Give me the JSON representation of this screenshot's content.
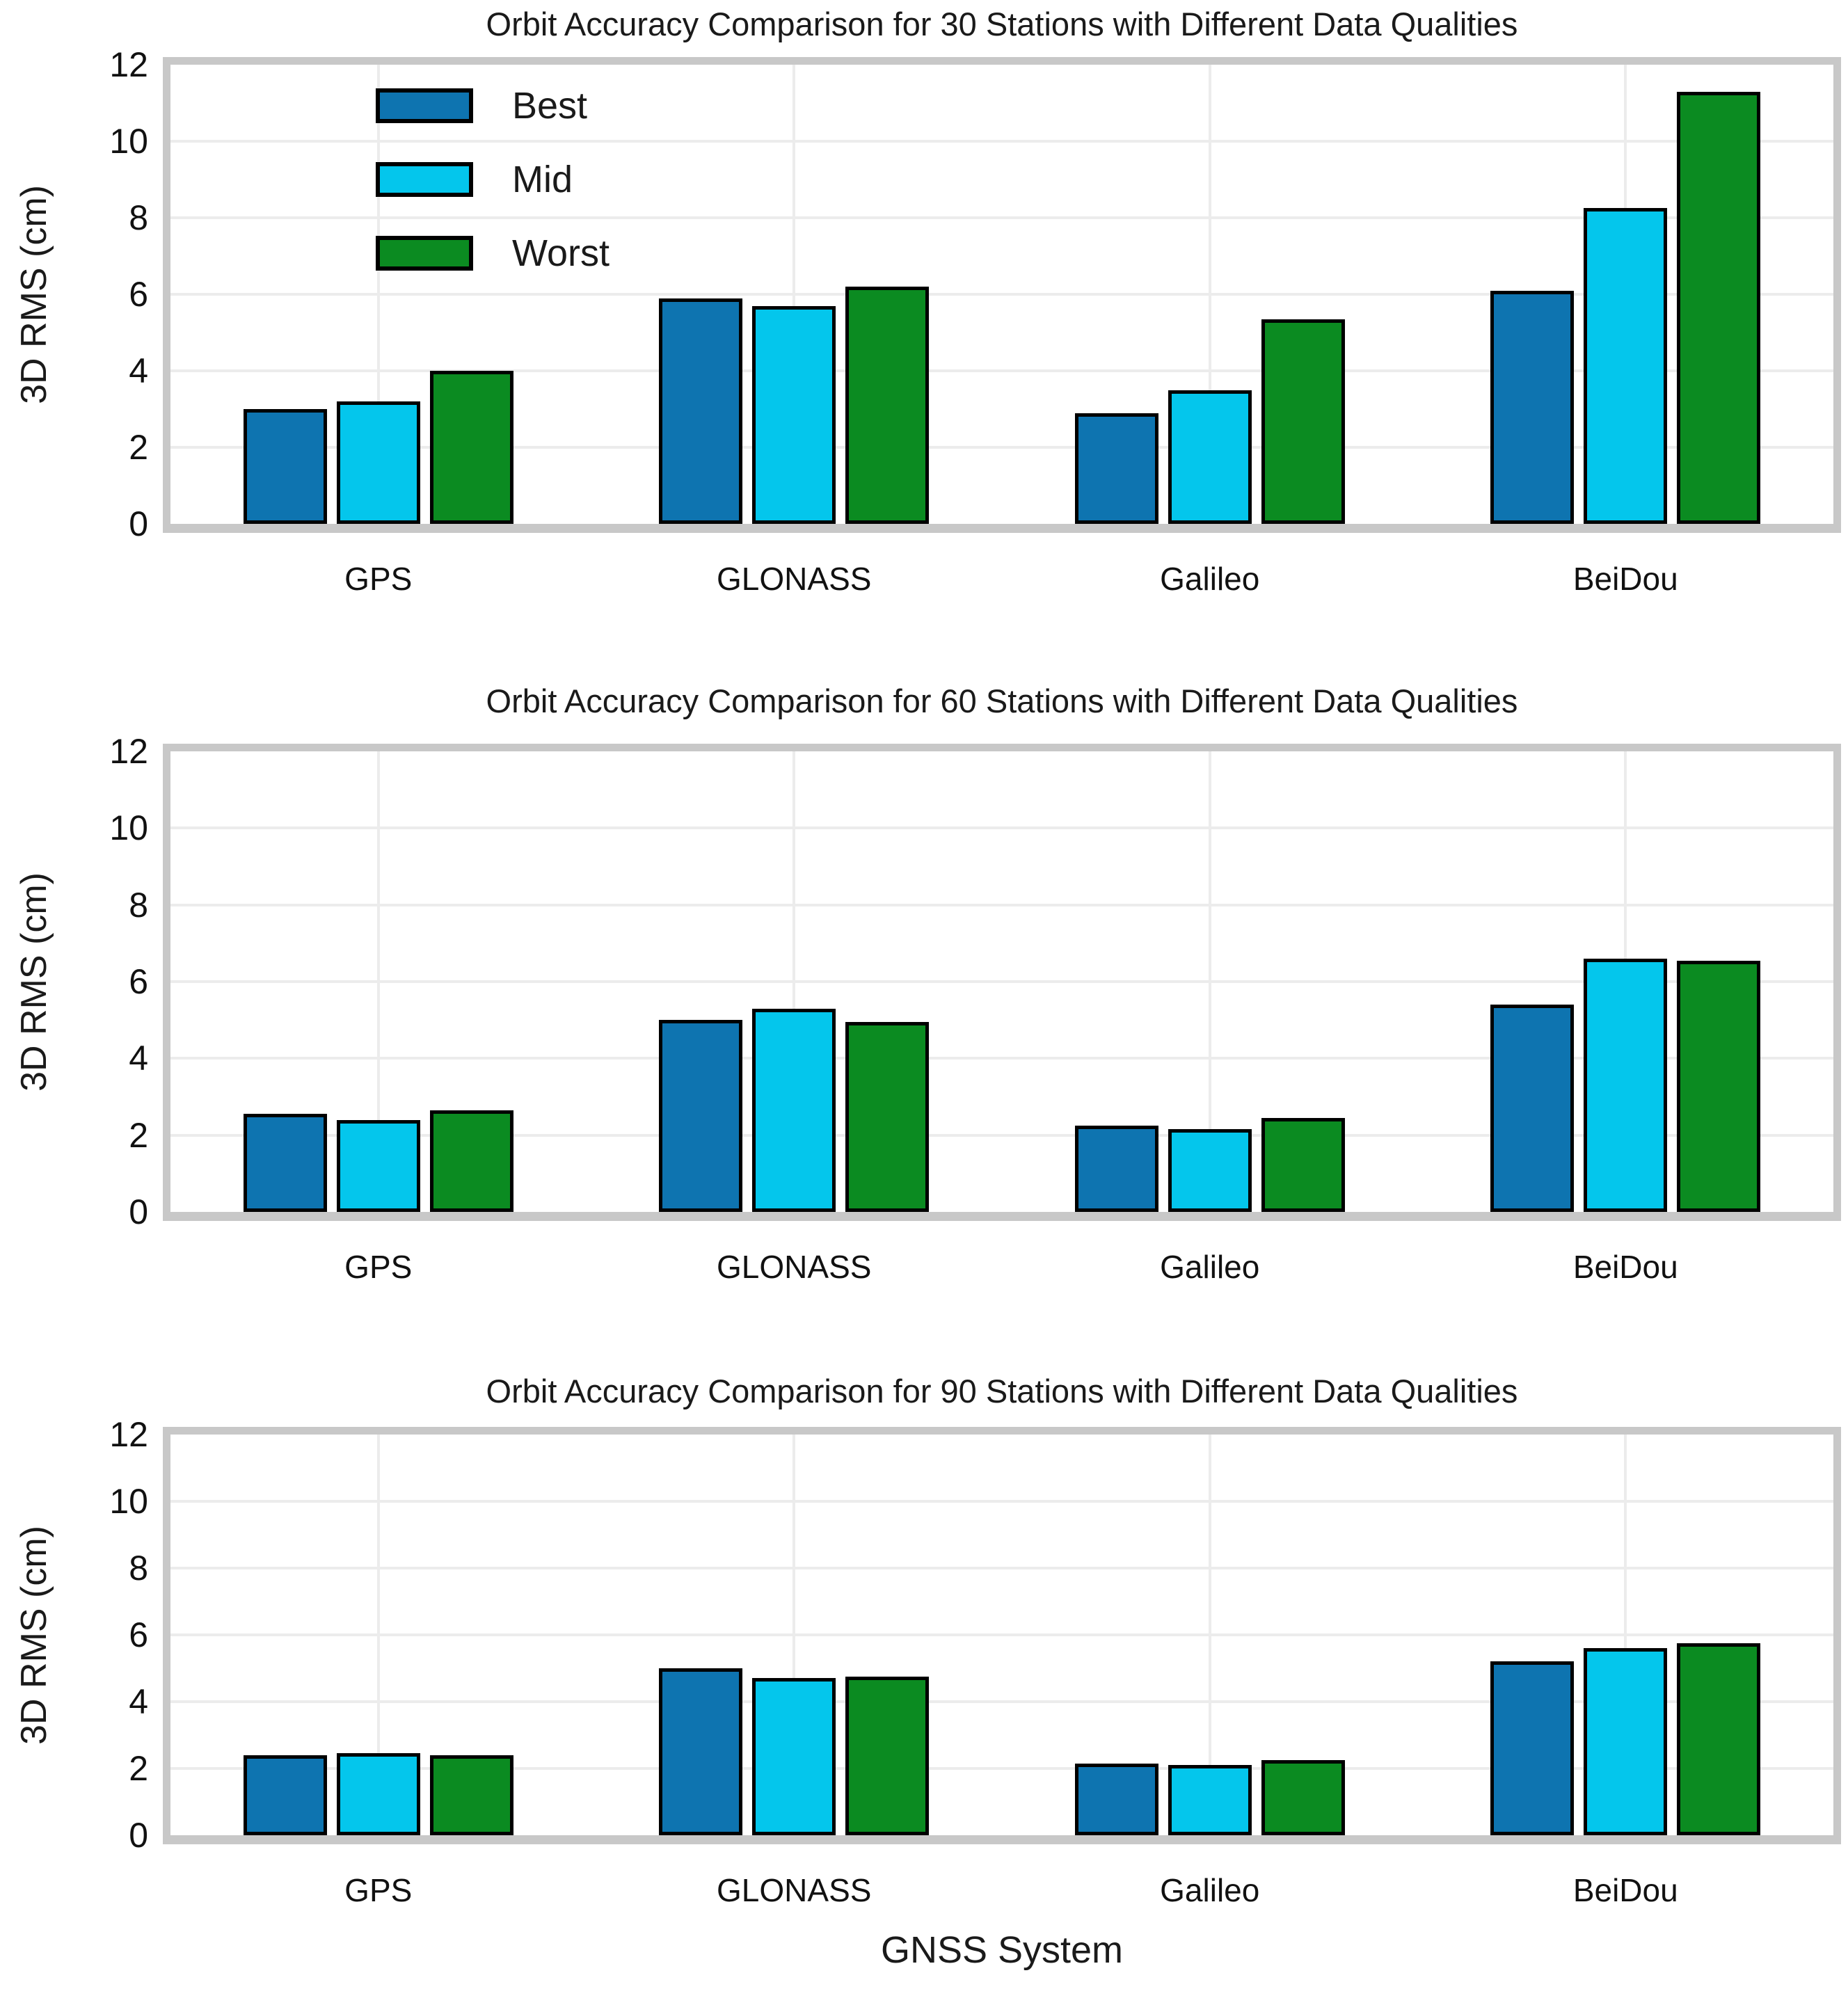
{
  "figure": {
    "xlabel": "GNSS System",
    "ylabel": "3D RMS (cm)",
    "background": "#ffffff",
    "colors": {
      "best": "#0e74b0",
      "mid": "#04c6ec",
      "worst": "#0b8b21",
      "bar_edge": "#000000",
      "gridline": "#ececec",
      "spine": "#c8c8c8",
      "text": "#1a1a1a"
    }
  },
  "legend": {
    "position": "upper-left-of-first-chart",
    "entries": [
      {
        "label": "Best",
        "color": "#0e74b0"
      },
      {
        "label": "Mid",
        "color": "#04c6ec"
      },
      {
        "label": "Worst",
        "color": "#0b8b21"
      }
    ]
  },
  "chart_data": [
    {
      "type": "bar",
      "title": "Orbit Accuracy Comparison for 30 Stations with Different Data Qualities",
      "categories": [
        "GPS",
        "GLONASS",
        "Galileo",
        "BeiDou"
      ],
      "series": [
        {
          "name": "Best",
          "color": "#0e74b0",
          "values": [
            3.0,
            5.9,
            2.9,
            6.1
          ]
        },
        {
          "name": "Mid",
          "color": "#04c6ec",
          "values": [
            3.2,
            5.7,
            3.5,
            8.25
          ]
        },
        {
          "name": "Worst",
          "color": "#0b8b21",
          "values": [
            4.0,
            6.2,
            5.35,
            11.3
          ]
        }
      ],
      "xlabel": "",
      "ylabel": "3D RMS (cm)",
      "ylim": [
        0,
        12
      ],
      "yticks": [
        0,
        2,
        4,
        6,
        8,
        10,
        12
      ],
      "grid": true,
      "legend_visible": true
    },
    {
      "type": "bar",
      "title": "Orbit Accuracy Comparison for 60 Stations with Different Data Qualities",
      "categories": [
        "GPS",
        "GLONASS",
        "Galileo",
        "BeiDou"
      ],
      "series": [
        {
          "name": "Best",
          "color": "#0e74b0",
          "values": [
            2.55,
            5.0,
            2.25,
            5.4
          ]
        },
        {
          "name": "Mid",
          "color": "#04c6ec",
          "values": [
            2.4,
            5.3,
            2.15,
            6.6
          ]
        },
        {
          "name": "Worst",
          "color": "#0b8b21",
          "values": [
            2.65,
            4.95,
            2.45,
            6.55
          ]
        }
      ],
      "xlabel": "",
      "ylabel": "3D RMS (cm)",
      "ylim": [
        0,
        12
      ],
      "yticks": [
        0,
        2,
        4,
        6,
        8,
        10,
        12
      ],
      "grid": true,
      "legend_visible": false
    },
    {
      "type": "bar",
      "title": "Orbit Accuracy Comparison for 90 Stations with Different Data Qualities",
      "categories": [
        "GPS",
        "GLONASS",
        "Galileo",
        "BeiDou"
      ],
      "series": [
        {
          "name": "Best",
          "color": "#0e74b0",
          "values": [
            2.4,
            5.0,
            2.15,
            5.2
          ]
        },
        {
          "name": "Mid",
          "color": "#04c6ec",
          "values": [
            2.45,
            4.7,
            2.1,
            5.6
          ]
        },
        {
          "name": "Worst",
          "color": "#0b8b21",
          "values": [
            2.4,
            4.75,
            2.25,
            5.75
          ]
        }
      ],
      "xlabel": "GNSS System",
      "ylabel": "3D RMS (cm)",
      "ylim": [
        0,
        12
      ],
      "yticks": [
        0,
        2,
        4,
        6,
        8,
        10,
        12
      ],
      "grid": true,
      "legend_visible": false
    }
  ]
}
